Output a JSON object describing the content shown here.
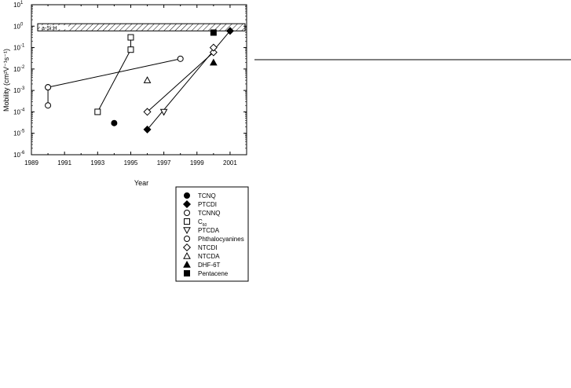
{
  "chart_data": {
    "type": "scatter",
    "xlabel": "Year",
    "ylabel": "Mobility (cm²V⁻¹s⁻¹)",
    "xlim": [
      1989,
      2002
    ],
    "ylim_log10": [
      -6,
      1
    ],
    "yscale": "log",
    "x_ticks": [
      "1989",
      "1991",
      "1993",
      "1995",
      "1997",
      "1999",
      "2001"
    ],
    "y_tick_exponents": [
      "-6",
      "-5",
      "-4",
      "-3",
      "-2",
      "-1",
      "0",
      "1"
    ],
    "y_tick_base": "10",
    "band": {
      "label": "a-Si:H",
      "y_low": 0.6,
      "y_high": 1.3
    },
    "series": [
      {
        "name": "TCNQ",
        "marker": "circle-filled",
        "connected": false,
        "points": [
          {
            "x": 1994,
            "y": 3e-05
          }
        ]
      },
      {
        "name": "PTCDI",
        "marker": "diamond-filled",
        "connected": true,
        "points": [
          {
            "x": 1996,
            "y": 1.5e-05
          },
          {
            "x": 2001,
            "y": 0.6
          }
        ]
      },
      {
        "name": "TCNNQ",
        "marker": "circle-open",
        "connected": true,
        "points": [
          {
            "x": 1990,
            "y": 0.0002
          },
          {
            "x": 1990,
            "y": 0.0014
          }
        ]
      },
      {
        "name": "C60",
        "marker": "square-open",
        "connected": true,
        "points": [
          {
            "x": 1993,
            "y": 0.0001
          },
          {
            "x": 1995,
            "y": 0.08
          },
          {
            "x": 1995,
            "y": 0.3
          }
        ]
      },
      {
        "name": "PTCDA",
        "marker": "triangle-down-open",
        "connected": false,
        "points": [
          {
            "x": 1997,
            "y": 0.0001
          }
        ]
      },
      {
        "name": "Phthalocyanines",
        "marker": "circle-open",
        "connected": true,
        "points": [
          {
            "x": 1990,
            "y": 0.0014
          },
          {
            "x": 1998,
            "y": 0.03
          }
        ]
      },
      {
        "name": "NTCDI",
        "marker": "diamond-open",
        "connected": true,
        "points": [
          {
            "x": 1996,
            "y": 0.0001
          },
          {
            "x": 2000,
            "y": 0.06
          },
          {
            "x": 2000,
            "y": 0.1
          }
        ]
      },
      {
        "name": "NTCDA",
        "marker": "triangle-up-open",
        "connected": false,
        "points": [
          {
            "x": 1996,
            "y": 0.003
          }
        ]
      },
      {
        "name": "DHF-6T",
        "marker": "triangle-up-filled",
        "connected": false,
        "points": [
          {
            "x": 2000,
            "y": 0.02
          }
        ]
      },
      {
        "name": "Pentacene",
        "marker": "square-filled",
        "connected": false,
        "points": [
          {
            "x": 2000,
            "y": 0.5
          }
        ]
      }
    ],
    "legend": {
      "placement": "below-chart",
      "entries": [
        {
          "label": "TCNQ",
          "marker": "circle-filled"
        },
        {
          "label": "PTCDI",
          "marker": "diamond-filled"
        },
        {
          "label": "TCNNQ",
          "marker": "circle-open"
        },
        {
          "label": "C",
          "label_sub": "60",
          "marker": "square-open"
        },
        {
          "label": "PTCDA",
          "marker": "triangle-down-open"
        },
        {
          "label": "Phthalocyanines",
          "marker": "circle-open"
        },
        {
          "label": "NTCDI",
          "marker": "diamond-open"
        },
        {
          "label": "NTCDA",
          "marker": "triangle-up-open"
        },
        {
          "label": "DHF-6T",
          "marker": "triangle-up-filled"
        },
        {
          "label": "Pentacene",
          "marker": "square-filled"
        }
      ]
    },
    "grid": false
  }
}
